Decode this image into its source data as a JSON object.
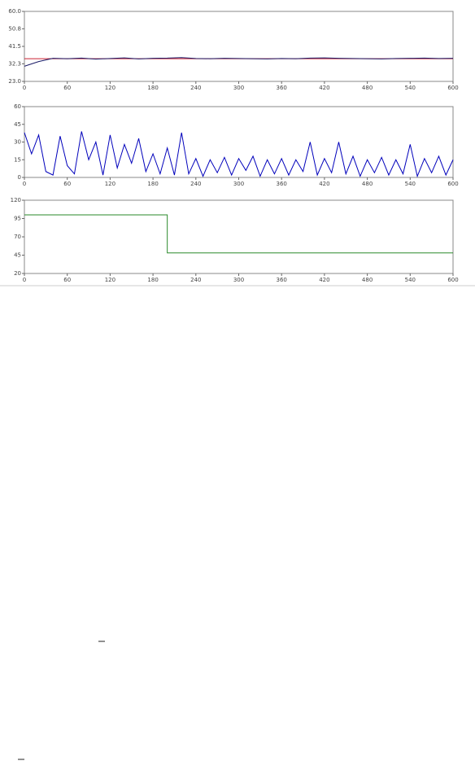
{
  "chart_data": [
    {
      "type": "line",
      "x": [
        0,
        20,
        40,
        60,
        80,
        100,
        120,
        140,
        160,
        180,
        200,
        220,
        240,
        260,
        280,
        300,
        320,
        340,
        360,
        380,
        400,
        420,
        440,
        460,
        480,
        500,
        520,
        540,
        560,
        580,
        600
      ],
      "series": [
        {
          "color": "#cc2233",
          "values": [
            35,
            35,
            35,
            35,
            35,
            35,
            35,
            35,
            35,
            35,
            35,
            35,
            35,
            35,
            35,
            35,
            35,
            35,
            35,
            35,
            35,
            35,
            35,
            35,
            35,
            35,
            35,
            35,
            35,
            35,
            35
          ]
        },
        {
          "color": "#1a1a66",
          "values": [
            31,
            33.5,
            35.2,
            35,
            35.3,
            34.8,
            35.1,
            35.4,
            34.9,
            35.2,
            35.3,
            35.6,
            35.1,
            35,
            35.2,
            35.1,
            35,
            34.9,
            35.1,
            35,
            35.3,
            35.4,
            35.2,
            35.1,
            35,
            34.9,
            35.1,
            35.2,
            35.3,
            35.1,
            35.2
          ]
        }
      ],
      "xlim": [
        0,
        600
      ],
      "xticks": [
        0,
        60,
        120,
        180,
        240,
        300,
        360,
        420,
        480,
        540,
        600
      ],
      "ylim": [
        23,
        60
      ],
      "yticks": [
        {
          "value": 23,
          "label": "23.0"
        },
        {
          "value": 32.3,
          "label": "32.3"
        },
        {
          "value": 41.5,
          "label": "41.5"
        },
        {
          "value": 50.8,
          "label": "50.8"
        },
        {
          "value": 60,
          "label": "60.0"
        }
      ]
    },
    {
      "type": "line",
      "x": [
        0,
        10,
        20,
        30,
        40,
        50,
        60,
        70,
        80,
        90,
        100,
        110,
        120,
        130,
        140,
        150,
        160,
        170,
        180,
        190,
        200,
        210,
        220,
        230,
        240,
        250,
        260,
        270,
        280,
        290,
        300,
        310,
        320,
        330,
        340,
        350,
        360,
        370,
        380,
        390,
        400,
        410,
        420,
        430,
        440,
        450,
        460,
        470,
        480,
        490,
        500,
        510,
        520,
        530,
        540,
        550,
        560,
        570,
        580,
        590,
        600
      ],
      "series": [
        {
          "color": "#0000bb",
          "values": [
            38,
            20,
            36,
            5,
            2,
            35,
            10,
            3,
            39,
            15,
            30,
            2,
            36,
            8,
            28,
            12,
            33,
            5,
            20,
            3,
            25,
            2,
            38,
            3,
            16,
            1,
            15,
            4,
            17,
            2,
            16,
            6,
            18,
            1,
            15,
            3,
            16,
            2,
            15,
            5,
            30,
            2,
            16,
            4,
            30,
            3,
            18,
            1,
            15,
            4,
            17,
            2,
            15,
            3,
            28,
            1,
            16,
            4,
            18,
            2,
            15
          ]
        }
      ],
      "xlim": [
        0,
        600
      ],
      "xticks": [
        0,
        60,
        120,
        180,
        240,
        300,
        360,
        420,
        480,
        540,
        600
      ],
      "ylim": [
        0,
        60
      ],
      "yticks": [
        0,
        15,
        30,
        45,
        60
      ]
    },
    {
      "type": "line",
      "x": [
        0,
        200,
        200,
        600
      ],
      "series": [
        {
          "color": "#2a8a2a",
          "values": [
            100,
            100,
            48,
            48
          ]
        }
      ],
      "xlim": [
        0,
        600
      ],
      "xticks": [
        0,
        60,
        120,
        180,
        240,
        300,
        360,
        420,
        480,
        540,
        600
      ],
      "ylim": [
        20,
        120
      ],
      "yticks": [
        20,
        45,
        70,
        95,
        120
      ]
    }
  ]
}
